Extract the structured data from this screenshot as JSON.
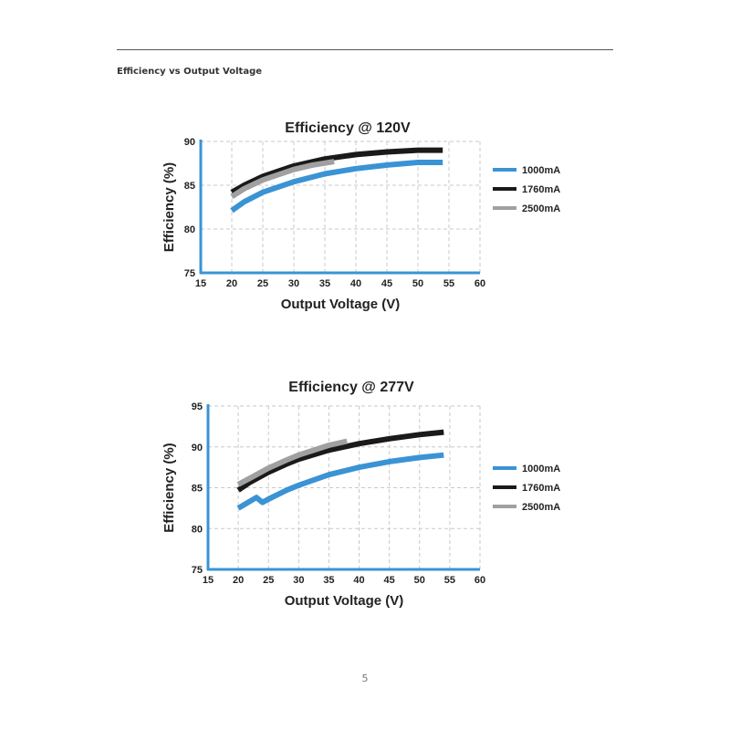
{
  "page": {
    "section_title": "Efficiency vs Output Voltage",
    "page_number": "5"
  },
  "colors": {
    "axis": "#3a93d4",
    "grid": "#c8c8c8",
    "text": "#222222"
  },
  "chart_data": [
    {
      "type": "line",
      "title": "Efficiency @ 120V",
      "xlabel": "Output Voltage (V)",
      "ylabel": "Efficiency (%)",
      "xlim": [
        15,
        60
      ],
      "ylim": [
        75,
        90
      ],
      "xticks": [
        15,
        20,
        25,
        30,
        35,
        40,
        45,
        50,
        55,
        60
      ],
      "yticks": [
        75,
        80,
        85,
        90
      ],
      "grid": true,
      "legend_position": "right",
      "series": [
        {
          "name": "1000mA",
          "color": "#3a93d4",
          "x": [
            20,
            22,
            25,
            30,
            35,
            40,
            45,
            50,
            54
          ],
          "y": [
            82.1,
            83.1,
            84.2,
            85.4,
            86.3,
            86.9,
            87.3,
            87.6,
            87.6
          ]
        },
        {
          "name": "1760mA",
          "color": "#1a1a1a",
          "x": [
            20,
            22,
            25,
            30,
            35,
            40,
            45,
            50,
            54
          ],
          "y": [
            84.2,
            85.0,
            86.0,
            87.2,
            88.0,
            88.5,
            88.8,
            89.0,
            89.0
          ]
        },
        {
          "name": "2500mA",
          "color": "#a0a0a0",
          "x": [
            20,
            22,
            25,
            30,
            33,
            36.5
          ],
          "y": [
            83.7,
            84.6,
            85.6,
            86.8,
            87.3,
            87.7
          ]
        }
      ]
    },
    {
      "type": "line",
      "title": "Efficiency @ 277V",
      "xlabel": "Output Voltage (V)",
      "ylabel": "Efficiency (%)",
      "xlim": [
        15,
        60
      ],
      "ylim": [
        75,
        95
      ],
      "xticks": [
        15,
        20,
        25,
        30,
        35,
        40,
        45,
        50,
        55,
        60
      ],
      "yticks": [
        75,
        80,
        85,
        90,
        95
      ],
      "grid": true,
      "legend_position": "right",
      "series": [
        {
          "name": "1000mA",
          "color": "#3a93d4",
          "x": [
            20,
            23,
            24,
            25,
            28,
            30,
            35,
            40,
            45,
            50,
            54
          ],
          "y": [
            82.5,
            83.8,
            83.2,
            83.6,
            84.7,
            85.3,
            86.6,
            87.5,
            88.2,
            88.7,
            89.0
          ]
        },
        {
          "name": "1760mA",
          "color": "#1a1a1a",
          "x": [
            20,
            22,
            25,
            28,
            30,
            35,
            40,
            45,
            50,
            54
          ],
          "y": [
            84.7,
            85.7,
            86.9,
            87.9,
            88.5,
            89.6,
            90.4,
            91.0,
            91.5,
            91.8
          ]
        },
        {
          "name": "2500mA",
          "color": "#a0a0a0",
          "x": [
            20,
            22,
            25,
            28,
            30,
            35,
            38
          ],
          "y": [
            85.4,
            86.2,
            87.4,
            88.4,
            89.0,
            90.2,
            90.7
          ]
        }
      ]
    }
  ]
}
